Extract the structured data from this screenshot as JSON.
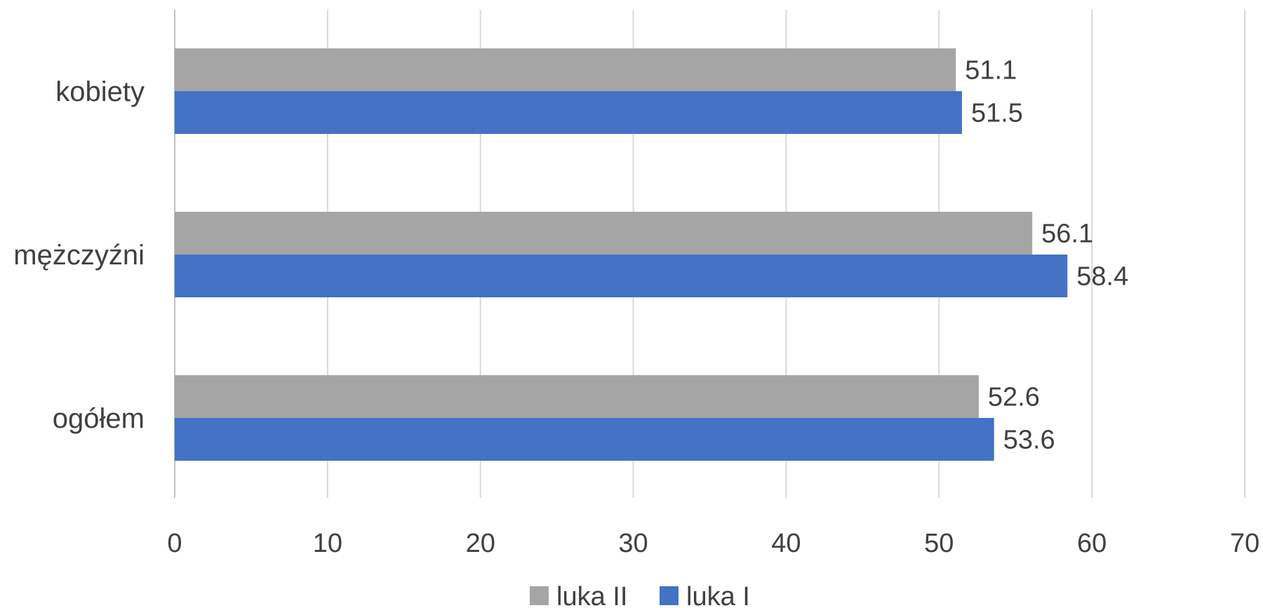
{
  "chart_data": {
    "type": "bar",
    "orientation": "horizontal",
    "categories": [
      "kobiety",
      "mężczyźni",
      "ogółem"
    ],
    "series": [
      {
        "name": "luka II",
        "values": [
          51.1,
          56.1,
          52.6
        ],
        "color": "#A5A5A5"
      },
      {
        "name": "luka I",
        "values": [
          51.5,
          58.4,
          53.6
        ],
        "color": "#4472C4"
      }
    ],
    "xlim": [
      0,
      70
    ],
    "xticks": [
      0,
      10,
      20,
      30,
      40,
      50,
      60,
      70
    ],
    "grid": true,
    "legend_position": "bottom"
  }
}
